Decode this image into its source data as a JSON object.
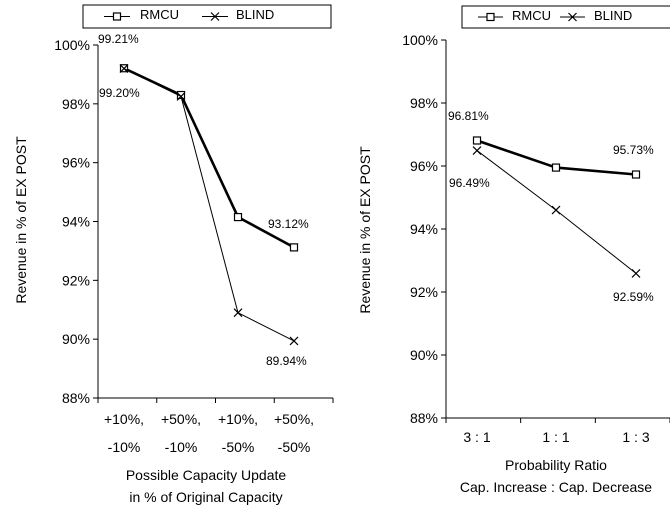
{
  "chart_data": [
    {
      "type": "line",
      "categories": [
        [
          "+10%,",
          "-10%"
        ],
        [
          "+50%,",
          "-10%"
        ],
        [
          "+10%,",
          "-50%"
        ],
        [
          "+50%,",
          "-50%"
        ]
      ],
      "series": [
        {
          "name": "RMCU",
          "values": [
            99.21,
            98.3,
            94.15,
            93.12
          ],
          "marker": "square",
          "color": "#000000"
        },
        {
          "name": "BLIND",
          "values": [
            99.2,
            98.25,
            90.9,
            89.94
          ],
          "marker": "x",
          "color": "#000000"
        }
      ],
      "data_labels": [
        {
          "series": 0,
          "index": 0,
          "text": "99.21%"
        },
        {
          "series": 1,
          "index": 0,
          "text": "99.20%"
        },
        {
          "series": 0,
          "index": 3,
          "text": "93.12%"
        },
        {
          "series": 1,
          "index": 3,
          "text": "89.94%"
        }
      ],
      "xlabel": [
        "Possible Capacity Update",
        "in % of Original Capacity"
      ],
      "ylabel": "Revenue in % of EX POST",
      "ylim": [
        88,
        100
      ],
      "yticks": [
        "88%",
        "90%",
        "92%",
        "94%",
        "96%",
        "98%",
        "100%"
      ],
      "legend": "top",
      "grid": false
    },
    {
      "type": "line",
      "categories": [
        "3 : 1",
        "1 : 1",
        "1 : 3"
      ],
      "series": [
        {
          "name": "RMCU",
          "values": [
            96.81,
            95.95,
            95.73
          ],
          "marker": "square",
          "color": "#000000"
        },
        {
          "name": "BLIND",
          "values": [
            96.49,
            94.6,
            92.59
          ],
          "marker": "x",
          "color": "#000000"
        }
      ],
      "data_labels": [
        {
          "series": 0,
          "index": 0,
          "text": "96.81%"
        },
        {
          "series": 1,
          "index": 0,
          "text": "96.49%"
        },
        {
          "series": 0,
          "index": 2,
          "text": "95.73%"
        },
        {
          "series": 1,
          "index": 2,
          "text": "92.59%"
        }
      ],
      "xlabel": [
        "Probability Ratio",
        "Cap. Increase : Cap. Decrease"
      ],
      "ylabel": "Revenue in % of EX POST",
      "ylim": [
        88,
        100
      ],
      "yticks": [
        "88%",
        "90%",
        "92%",
        "94%",
        "96%",
        "98%",
        "100%"
      ],
      "legend": "top",
      "grid": false
    }
  ]
}
